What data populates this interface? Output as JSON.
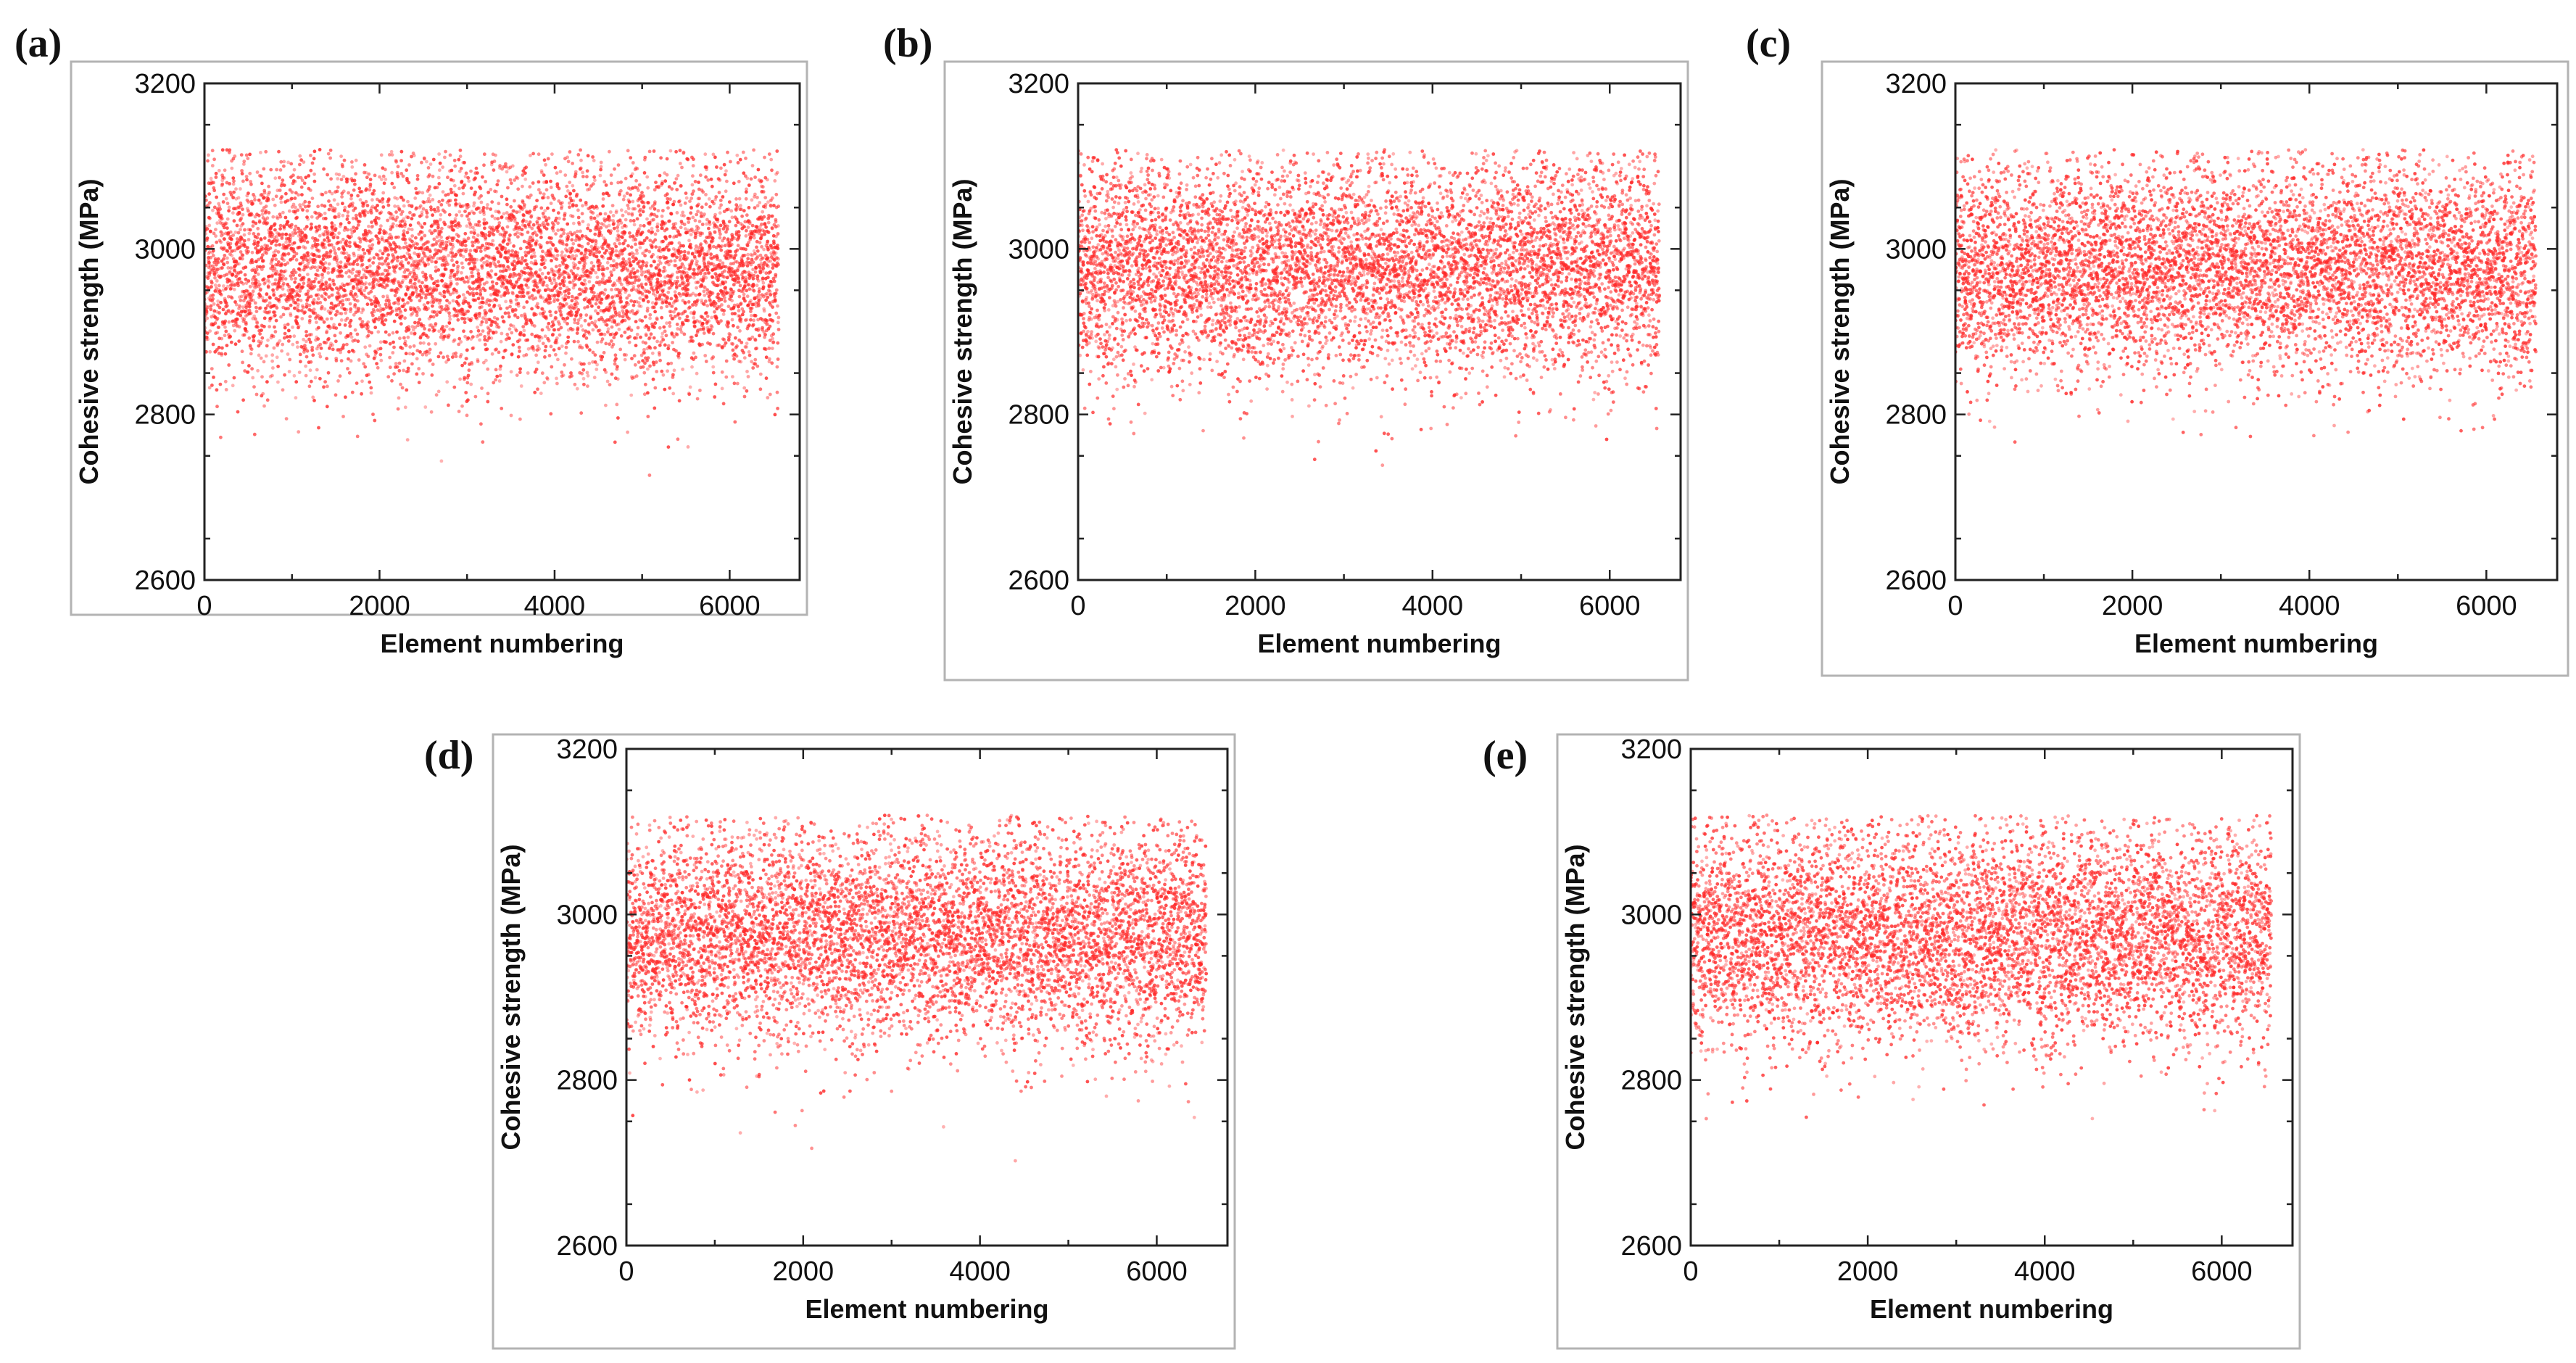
{
  "figure": {
    "marker_color": "#ff2a2a",
    "frame_color": "#b3b3b3"
  },
  "chart_data": [
    {
      "id": "a",
      "panel_label": "(a)",
      "type": "scatter",
      "title": "",
      "xlabel": "Element numbering",
      "ylabel": "Cohesive strength (MPa)",
      "xlim": [
        0,
        6800
      ],
      "ylim": [
        2600,
        3200
      ],
      "xticks": [
        0,
        2000,
        4000,
        6000
      ],
      "yticks": [
        2600,
        2800,
        3000,
        3200
      ],
      "xtick_labels": [
        "0",
        "2000",
        "4000",
        "6000"
      ],
      "ytick_labels": [
        "2600",
        "2800",
        "3000",
        "3200"
      ],
      "n_points": 6560,
      "mean": 2975,
      "std": 65,
      "max": 3120,
      "seed": 11,
      "grid": false
    },
    {
      "id": "b",
      "panel_label": "(b)",
      "type": "scatter",
      "title": "",
      "xlabel": "Element numbering",
      "ylabel": "Cohesive strength (MPa)",
      "xlim": [
        0,
        6800
      ],
      "ylim": [
        2600,
        3200
      ],
      "xticks": [
        0,
        2000,
        4000,
        6000
      ],
      "yticks": [
        2600,
        2800,
        3000,
        3200
      ],
      "xtick_labels": [
        "0",
        "2000",
        "4000",
        "6000"
      ],
      "ytick_labels": [
        "2600",
        "2800",
        "3000",
        "3200"
      ],
      "n_points": 6560,
      "mean": 2975,
      "std": 65,
      "max": 3120,
      "seed": 23,
      "grid": false
    },
    {
      "id": "c",
      "panel_label": "(c)",
      "type": "scatter",
      "title": "",
      "xlabel": "Element numbering",
      "ylabel": "Cohesive strength (MPa)",
      "xlim": [
        0,
        6800
      ],
      "ylim": [
        2600,
        3200
      ],
      "xticks": [
        0,
        2000,
        4000,
        6000
      ],
      "yticks": [
        2600,
        2800,
        3000,
        3200
      ],
      "xtick_labels": [
        "0",
        "2000",
        "4000",
        "6000"
      ],
      "ytick_labels": [
        "2600",
        "2800",
        "3000",
        "3200"
      ],
      "n_points": 6560,
      "mean": 2975,
      "std": 65,
      "max": 3120,
      "seed": 37,
      "grid": false
    },
    {
      "id": "d",
      "panel_label": "(d)",
      "type": "scatter",
      "title": "",
      "xlabel": "Element numbering",
      "ylabel": "Cohesive strength (MPa)",
      "xlim": [
        0,
        6800
      ],
      "ylim": [
        2600,
        3200
      ],
      "xticks": [
        0,
        2000,
        4000,
        6000
      ],
      "yticks": [
        2600,
        2800,
        3000,
        3200
      ],
      "xtick_labels": [
        "0",
        "2000",
        "4000",
        "6000"
      ],
      "ytick_labels": [
        "2600",
        "2800",
        "3000",
        "3200"
      ],
      "n_points": 6560,
      "mean": 2975,
      "std": 65,
      "max": 3120,
      "seed": 41,
      "grid": false
    },
    {
      "id": "e",
      "panel_label": "(e)",
      "type": "scatter",
      "title": "",
      "xlabel": "Element numbering",
      "ylabel": "Cohesive strength (MPa)",
      "xlim": [
        0,
        6800
      ],
      "ylim": [
        2600,
        3200
      ],
      "xticks": [
        0,
        2000,
        4000,
        6000
      ],
      "yticks": [
        2600,
        2800,
        3000,
        3200
      ],
      "xtick_labels": [
        "0",
        "2000",
        "4000",
        "6000"
      ],
      "ytick_labels": [
        "2600",
        "2800",
        "3000",
        "3200"
      ],
      "n_points": 6560,
      "mean": 2975,
      "std": 65,
      "max": 3120,
      "seed": 53,
      "grid": false
    }
  ]
}
